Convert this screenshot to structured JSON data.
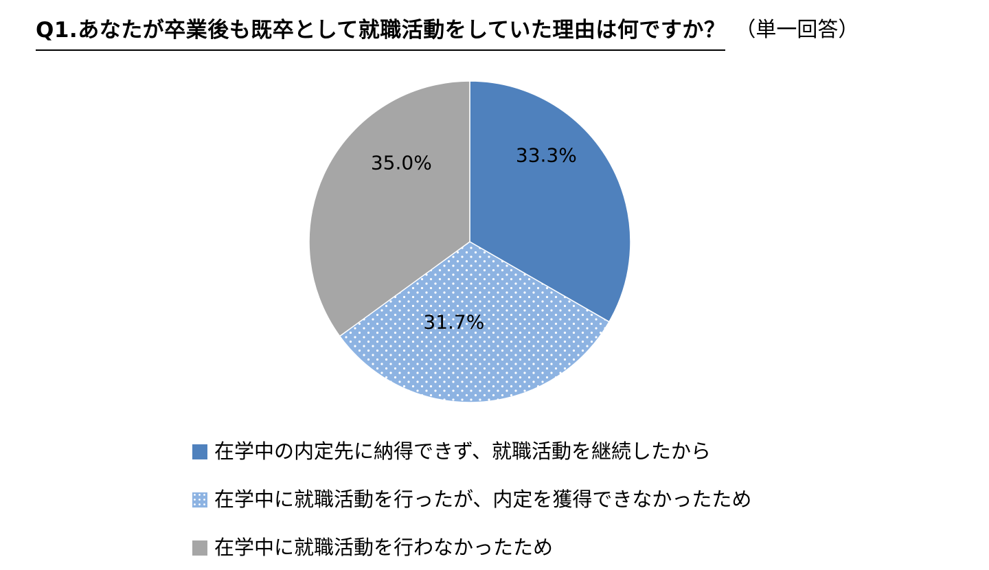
{
  "header": {
    "title": "Q1.あなたが卒業後も既卒として就職活動をしていた理由は何ですか？",
    "note": "（単一回答）"
  },
  "chart_data": {
    "type": "pie",
    "start": "12 o'clock",
    "direction": "clockwise",
    "legend_position": "bottom",
    "slices": [
      {
        "name": "在学中の内定先に納得できず、就職活動を継続したから",
        "value": 33.3,
        "label": "33.3%",
        "color": "#4F81BD",
        "pattern": "solid"
      },
      {
        "name": "在学中に就職活動を行ったが、内定を獲得できなかったため",
        "value": 31.7,
        "label": "31.7%",
        "color": "#8DB3E2",
        "pattern": "dotted"
      },
      {
        "name": "在学中に就職活動を行わなかったため",
        "value": 35.0,
        "label": "35.0%",
        "color": "#A6A6A6",
        "pattern": "solid"
      }
    ]
  }
}
